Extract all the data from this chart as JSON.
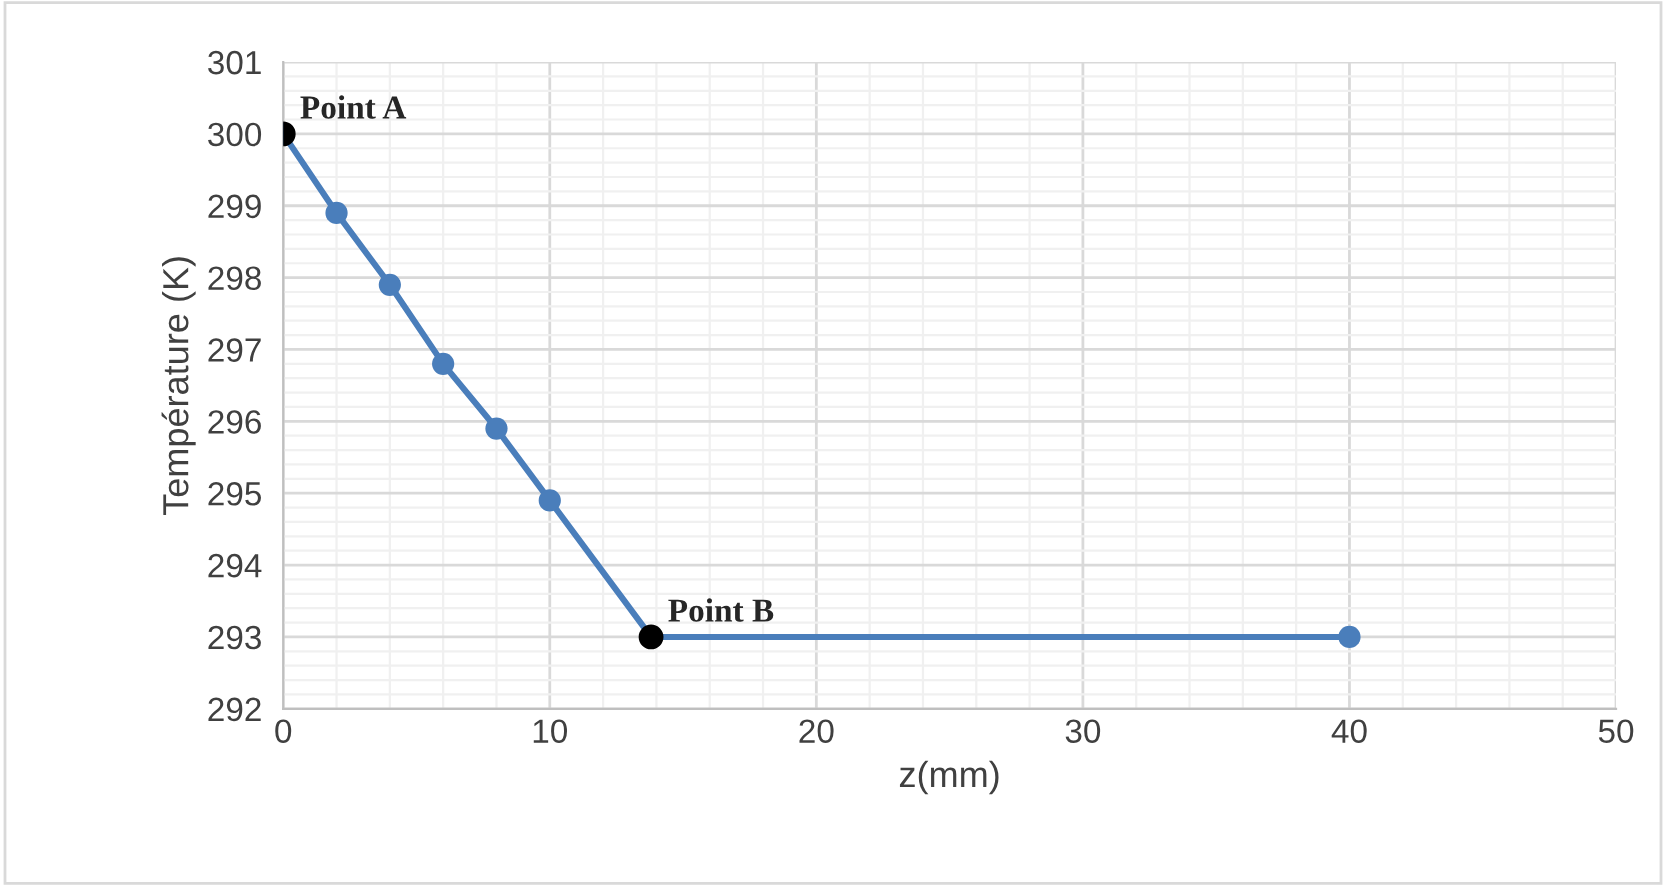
{
  "chart_data": {
    "type": "line",
    "xlabel": "z(mm)",
    "ylabel": "Température (K)",
    "x": [
      0,
      2,
      4,
      6,
      8,
      10,
      13.8,
      40
    ],
    "series": [
      {
        "color": "#4a7ebb",
        "marker": "circle",
        "values": [
          300,
          298.9,
          297.9,
          296.8,
          295.9,
          294.9,
          293,
          293
        ]
      },
      {
        "type": "scatter",
        "color": "#000000",
        "marker": "circle",
        "x": [
          0,
          13.8
        ],
        "values": [
          300,
          293
        ]
      }
    ],
    "annotations": [
      {
        "text": "Point A",
        "x": 0,
        "y": 300
      },
      {
        "text": "Point B",
        "x": 13.8,
        "y": 293
      }
    ],
    "xlim": [
      0,
      50
    ],
    "xticks": [
      0,
      10,
      20,
      30,
      40,
      50
    ],
    "ylim": [
      292,
      301
    ],
    "yticks": [
      292,
      293,
      294,
      295,
      296,
      297,
      298,
      299,
      300,
      301
    ],
    "grid": true,
    "line_style": "solid"
  }
}
